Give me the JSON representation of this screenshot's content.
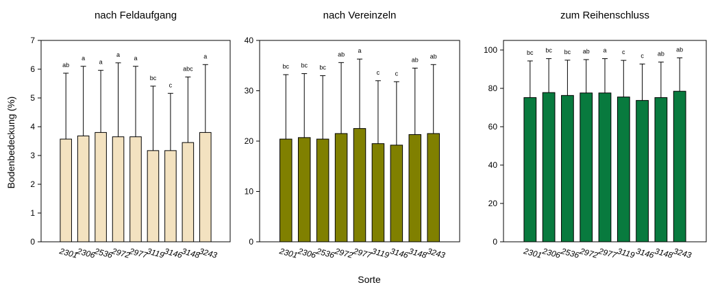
{
  "figure": {
    "ylabel": "Bodenbedeckung (%)",
    "xlabel": "Sorte"
  },
  "chart_data": [
    {
      "type": "bar",
      "title": "nach Feldaufgang",
      "categories": [
        "2301",
        "2306",
        "2536",
        "2972",
        "2977",
        "3119",
        "3146",
        "3148",
        "3243"
      ],
      "values": [
        3.57,
        3.68,
        3.8,
        3.65,
        3.65,
        3.17,
        3.17,
        3.45,
        3.8
      ],
      "error_upper": [
        5.86,
        6.1,
        5.96,
        6.22,
        6.1,
        5.41,
        5.16,
        5.73,
        6.16
      ],
      "significance": [
        "ab",
        "a",
        "a",
        "a",
        "a",
        "bc",
        "c",
        "abc",
        "a"
      ],
      "ylim": [
        0,
        7
      ],
      "yticks": [
        0,
        1,
        2,
        3,
        4,
        5,
        6,
        7
      ],
      "bar_color": "#f3e2c0"
    },
    {
      "type": "bar",
      "title": "nach Vereinzeln",
      "categories": [
        "2301",
        "2306",
        "2536",
        "2972",
        "2977",
        "3119",
        "3146",
        "3148",
        "3243"
      ],
      "values": [
        20.4,
        20.7,
        20.4,
        21.5,
        22.5,
        19.5,
        19.2,
        21.3,
        21.5
      ],
      "error_upper": [
        33.2,
        33.4,
        33.0,
        35.6,
        36.3,
        32.0,
        31.8,
        34.5,
        35.2
      ],
      "significance": [
        "bc",
        "bc",
        "bc",
        "ab",
        "a",
        "c",
        "c",
        "ab",
        "ab"
      ],
      "ylim": [
        0,
        40
      ],
      "yticks": [
        0,
        10,
        20,
        30,
        40
      ],
      "bar_color": "#808000"
    },
    {
      "type": "bar",
      "title": "zum Reihenschluss",
      "categories": [
        "2301",
        "2306",
        "2536",
        "2972",
        "2977",
        "3119",
        "3146",
        "3148",
        "3243"
      ],
      "values": [
        75.2,
        77.8,
        76.3,
        77.6,
        77.6,
        75.5,
        73.7,
        75.2,
        78.5
      ],
      "error_upper": [
        94.3,
        95.5,
        94.7,
        95.0,
        95.5,
        94.6,
        92.7,
        93.7,
        95.9
      ],
      "significance": [
        "bc",
        "bc",
        "bc",
        "ab",
        "a",
        "c",
        "c",
        "ab",
        "ab"
      ],
      "ylim": [
        0,
        105
      ],
      "yticks": [
        0,
        20,
        40,
        60,
        80,
        100
      ],
      "bar_color": "#087a3e"
    }
  ]
}
